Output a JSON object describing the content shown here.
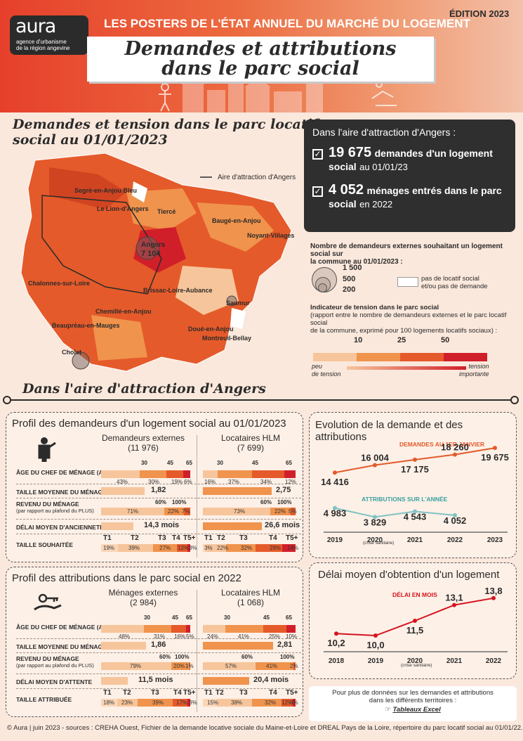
{
  "header": {
    "logo_name": "aura",
    "logo_sub_1": "agence d'urbanisme",
    "logo_sub_2": "de la région angevine",
    "series": "LES POSTERS DE L'ÉTAT ANNUEL DU MARCHÉ DU LOGEMENT",
    "edition": "ÉDITION 2023",
    "title_1": "Demandes et attributions",
    "title_2": "dans le parc social"
  },
  "map_section": {
    "title_1": "Demandes et tension dans le parc locatif",
    "title_2": "social au 01/01/2023",
    "aire_legend": "Aire d'attraction d'Angers",
    "towns": [
      "Segré-en-Anjou Bleu",
      "Le Lion-d'Angers",
      "Tiercé",
      "Baugé-en-Anjou",
      "Noyant-Villages",
      "Angers",
      "7 104",
      "Chalonnes-sur-Loire",
      "Brissac-Loire-Aubance",
      "Saumur",
      "Chemillé-en-Anjou",
      "Beaupréau-en-Mauges",
      "Doué-en-Anjou",
      "Montreuil-Bellay",
      "Cholet"
    ]
  },
  "keyfigures": {
    "heading": "Dans l'aire d'attraction d'Angers :",
    "demandes_value": "19 675",
    "demandes_text_1": "demandes d'un logement",
    "demandes_text_2": "social",
    "demandes_text_3": "au 01/01/23",
    "menages_value": "4 052",
    "menages_text_1": "ménages entrés dans le parc",
    "menages_text_2": "social",
    "menages_text_3": "en 2022"
  },
  "legend": {
    "circles_title_1": "Nombre de demandeurs externes souhaitant un logement social sur",
    "circles_title_2": "la commune au 01/01/2023 :",
    "circle_values": [
      "1 500",
      "500",
      "200"
    ],
    "white_label_1": "pas de locatif social",
    "white_label_2": "et/ou pas de demande",
    "tension_title": "Indicateur de tension dans le parc social",
    "tension_sub_1": "(rapport entre le nombre de demandeurs externes et le parc locatif social",
    "tension_sub_2": "de la commune, exprimé pour 100 logements locatifs sociaux) :",
    "tension_ticks": [
      "10",
      "25",
      "50"
    ],
    "tension_low_1": "peu",
    "tension_low_2": "de tension",
    "tension_high_1": "tension",
    "tension_high_2": "importante",
    "colors": [
      "#f7c59b",
      "#f0934c",
      "#e55a2a",
      "#d11f2a"
    ]
  },
  "aire_section": {
    "title": "Dans l'aire d'attraction d'Angers"
  },
  "profil_demandeurs": {
    "title": "Profil des demandeurs d'un logement social au 01/01/2023",
    "col1_h": "Demandeurs externes",
    "col1_n": "(11 976)",
    "col2_h": "Locataires HLM",
    "col2_n": "(7 699)",
    "rows": [
      "ÂGE DU CHEF DE MÉNAGE (AN)",
      "TAILLE MOYENNE DU MÉNAGE",
      "REVENU DU MÉNAGE",
      "(par rapport au plafond du PLUS)",
      "DÉLAI MOYEN D'ANCIENNETÉ",
      "TAILLE SOUHAITÉE"
    ],
    "age_ticks": [
      "30",
      "45",
      "65"
    ],
    "age_ext": [
      "43%",
      "30%",
      "19%",
      "6%"
    ],
    "age_hlm": [
      "16%",
      "37%",
      "34%",
      "12%"
    ],
    "taille_ext": "1,82",
    "taille_hlm": "2,75",
    "rev_ticks": [
      "60%",
      "100%"
    ],
    "rev_ext": [
      "71%",
      "22%",
      "7%"
    ],
    "rev_hlm": [
      "73%",
      "22%",
      "5%"
    ],
    "delai_ext": "14,3 mois",
    "delai_hlm": "26,6 mois",
    "t_labels": [
      "T1",
      "T2",
      "T3",
      "T4",
      "T5+"
    ],
    "t_ext": [
      "19%",
      "39%",
      "27%",
      "12%",
      "3%"
    ],
    "t_hlm": [
      "3%",
      "22%",
      "32%",
      "29%",
      "14%"
    ]
  },
  "profil_attributions": {
    "title": "Profil des attributions dans le parc social en 2022",
    "col1_h": "Ménages externes",
    "col1_n": "(2 984)",
    "col2_h": "Locataires HLM",
    "col2_n": "(1 068)",
    "rows": [
      "ÂGE DU CHEF DE MÉNAGE (AN)",
      "TAILLE MOYENNE DU MÉNAGE",
      "REVENU DU MÉNAGE",
      "(par rapport au plafond du PLUS)",
      "DÉLAI MOYEN D'ATTENTE",
      "TAILLE ATTRIBUÉE"
    ],
    "age_ticks": [
      "30",
      "45",
      "65"
    ],
    "age_ext": [
      "48%",
      "31%",
      "16%",
      "5%"
    ],
    "age_hlm": [
      "24%",
      "41%",
      "25%",
      "10%"
    ],
    "taille_ext": "1,86",
    "taille_hlm": "2,81",
    "rev_ticks": [
      "60%",
      "100%"
    ],
    "rev_ext": [
      "79%",
      "20%",
      "1%"
    ],
    "rev_hlm": [
      "57%",
      "41%",
      "2%"
    ],
    "delai_ext": "11,5 mois",
    "delai_hlm": "20,4 mois",
    "t_labels": [
      "T1",
      "T2",
      "T3",
      "T4",
      "T5+"
    ],
    "t_ext": [
      "18%",
      "23%",
      "39%",
      "17%",
      "3%"
    ],
    "t_hlm": [
      "15%",
      "38%",
      "32%",
      "12%",
      "3%"
    ]
  },
  "evolution": {
    "title": "Evolution de la demande et des attributions",
    "demandes_label": "DEMANDES AU 1ER JANVIER",
    "attributions_label": "ATTRIBUTIONS SUR L'ANNÉE",
    "years": [
      "2019",
      "2020",
      "2021",
      "2022",
      "2023"
    ],
    "note_2020": "(crise sanitaire)",
    "demandes": [
      "14 416",
      "16 004",
      "17 175",
      "18 260",
      "19 675"
    ],
    "attributions": [
      "4 983",
      "3 829",
      "4 543",
      "4 052"
    ],
    "color_demandes": "#e35a2a",
    "color_attributions": "#7fc3c3"
  },
  "delai": {
    "title": "Délai moyen d'obtention d'un logement",
    "label": "DÉLAI EN MOIS",
    "years": [
      "2018",
      "2019",
      "2020",
      "2021",
      "2022"
    ],
    "note_2020": "(crise sanitaire)",
    "values": [
      "10,2",
      "10,0",
      "11,5",
      "13,1",
      "13,8"
    ],
    "color": "#d6141f"
  },
  "more": {
    "line_1": "Pour plus de données sur les demandes et attributions",
    "line_2": "dans les différents territoires :",
    "link": "Tableaux Excel"
  },
  "chart_data": [
    {
      "type": "line",
      "title": "Evolution de la demande et des attributions",
      "x": [
        2019,
        2020,
        2021,
        2022,
        2023
      ],
      "series": [
        {
          "name": "DEMANDES AU 1ER JANVIER",
          "values": [
            14416,
            16004,
            17175,
            18260,
            19675
          ]
        },
        {
          "name": "ATTRIBUTIONS SUR L'ANNÉE",
          "values": [
            4983,
            3829,
            4543,
            4052,
            null
          ]
        }
      ]
    },
    {
      "type": "line",
      "title": "Délai moyen d'obtention d'un logement",
      "x": [
        2018,
        2019,
        2020,
        2021,
        2022
      ],
      "series": [
        {
          "name": "DÉLAI EN MOIS",
          "values": [
            10.2,
            10.0,
            11.5,
            13.1,
            13.8
          ]
        }
      ]
    }
  ],
  "footer": "© Aura | juin 2023 - sources : CREHA Ouest, Fichier de la demande locative sociale du Maine-et-Loire et DREAL Pays de la Loire, répertoire du parc locatif social au 01/01/22."
}
